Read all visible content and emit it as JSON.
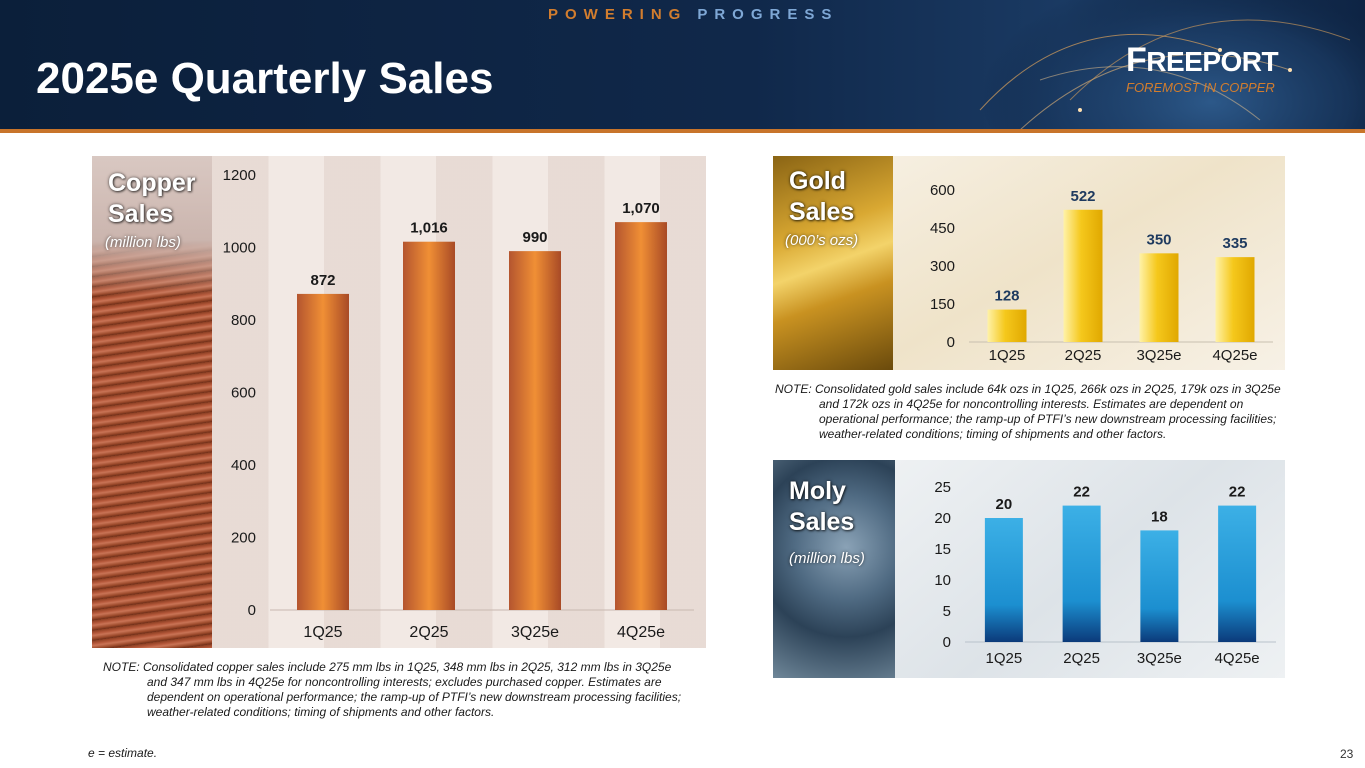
{
  "header": {
    "tagline_part1": "POWERING",
    "tagline_part2": "PROGRESS",
    "title": "2025e Quarterly Sales",
    "logo_name_initial": "F",
    "logo_name_rest": "REEPORT",
    "logo_tagline": "FOREMOST IN COPPER"
  },
  "panels": {
    "copper": {
      "title_line1": "Copper",
      "title_line2": "Sales",
      "unit": "(million lbs)"
    },
    "gold": {
      "title_line1": "Gold",
      "title_line2": "Sales",
      "unit": "(000’s ozs)"
    },
    "moly": {
      "title_line1": "Moly",
      "title_line2": "Sales",
      "unit": "(million lbs)"
    }
  },
  "notes": {
    "copper": "NOTE: Consolidated copper sales include 275 mm lbs in 1Q25, 348 mm lbs in 2Q25, 312 mm lbs in 3Q25e and 347 mm lbs in 4Q25e for noncontrolling interests; excludes purchased copper. Estimates are dependent on operational performance; the ramp-up of PTFI’s new downstream processing facilities; weather-related conditions; timing of shipments and other factors.",
    "gold": "NOTE: Consolidated gold sales include 64k ozs in 1Q25, 266k ozs in 2Q25, 179k ozs in 3Q25e and 172k ozs in 4Q25e for noncontrolling interests. Estimates are dependent on operational performance; the ramp-up of PTFI’s new downstream processing facilities; weather-related conditions; timing of shipments and other factors."
  },
  "footnote": "e = estimate.",
  "page_number": "23",
  "colors": {
    "copper_bar": "#d8772f",
    "gold_bar": "#f0c419",
    "moly_bar": "#2a9fd8",
    "accent_orange": "#d27d2e",
    "header_navy": "#0b1f3a"
  },
  "chart_data": [
    {
      "id": "copper",
      "type": "bar",
      "categories": [
        "1Q25",
        "2Q25",
        "3Q25e",
        "4Q25e"
      ],
      "values": [
        872,
        1016,
        990,
        1070
      ],
      "value_labels": [
        "872",
        "1,016",
        "990",
        "1,070"
      ],
      "ylim": [
        0,
        1200
      ],
      "yticks": [
        0,
        200,
        400,
        600,
        800,
        1000,
        1200
      ],
      "title": "Copper Sales",
      "ylabel": "(million lbs)",
      "xlabel": "",
      "grid": false,
      "legend": "none"
    },
    {
      "id": "gold",
      "type": "bar",
      "categories": [
        "1Q25",
        "2Q25",
        "3Q25e",
        "4Q25e"
      ],
      "values": [
        128,
        522,
        350,
        335
      ],
      "value_labels": [
        "128",
        "522",
        "350",
        "335"
      ],
      "ylim": [
        0,
        600
      ],
      "yticks": [
        0,
        150,
        300,
        450,
        600
      ],
      "title": "Gold Sales",
      "ylabel": "(000’s ozs)",
      "xlabel": "",
      "grid": false,
      "legend": "none"
    },
    {
      "id": "moly",
      "type": "bar",
      "categories": [
        "1Q25",
        "2Q25",
        "3Q25e",
        "4Q25e"
      ],
      "values": [
        20,
        22,
        18,
        22
      ],
      "value_labels": [
        "20",
        "22",
        "18",
        "22"
      ],
      "ylim": [
        0,
        25
      ],
      "yticks": [
        0,
        5,
        10,
        15,
        20,
        25
      ],
      "title": "Moly Sales",
      "ylabel": "(million lbs)",
      "xlabel": "",
      "grid": false,
      "legend": "none"
    }
  ]
}
